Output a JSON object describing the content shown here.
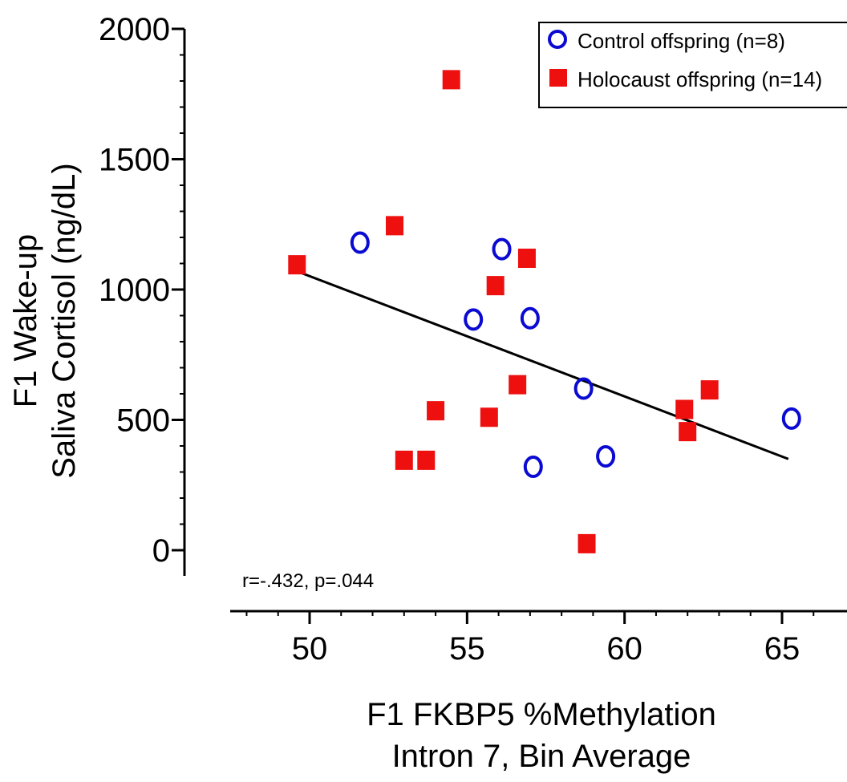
{
  "chart_data": {
    "type": "scatter",
    "x_axis": {
      "label_lines": [
        "F1 FKBP5 %Methylation",
        "Intron 7, Bin Average"
      ],
      "lim": [
        47.5,
        67
      ],
      "ticks": [
        50,
        55,
        60,
        65
      ],
      "tick_labels": [
        "50",
        "55",
        "60",
        "65"
      ]
    },
    "y_axis": {
      "label_lines": [
        "F1 Wake-up",
        "Saliva Cortisol (ng/dL)"
      ],
      "lim": [
        -100,
        2000
      ],
      "ticks": [
        0,
        500,
        1000,
        1500,
        2000
      ],
      "tick_labels": [
        "0",
        "500",
        "1000",
        "1500",
        "2000"
      ]
    },
    "grid": false,
    "legend": {
      "position": "top-right",
      "entries": [
        {
          "name": "Control offspring (n=8)",
          "marker": "open-circle",
          "color": "#0a0ad2"
        },
        {
          "name": "Holocaust offspring (n=14)",
          "marker": "filled-square",
          "color": "#ee0f0f"
        }
      ]
    },
    "series": [
      {
        "name": "Control offspring (n=8)",
        "marker": "open-circle",
        "color": "#0a0ad2",
        "points": [
          {
            "x": 51.6,
            "y": 1180
          },
          {
            "x": 56.1,
            "y": 1155
          },
          {
            "x": 55.2,
            "y": 885
          },
          {
            "x": 57.0,
            "y": 890
          },
          {
            "x": 58.7,
            "y": 620
          },
          {
            "x": 65.3,
            "y": 505
          },
          {
            "x": 59.4,
            "y": 360
          },
          {
            "x": 57.1,
            "y": 320
          }
        ]
      },
      {
        "name": "Holocaust offspring (n=14)",
        "marker": "filled-square",
        "color": "#ee0f0f",
        "points": [
          {
            "x": 54.5,
            "y": 1805
          },
          {
            "x": 52.7,
            "y": 1245
          },
          {
            "x": 49.6,
            "y": 1095
          },
          {
            "x": 56.9,
            "y": 1120
          },
          {
            "x": 55.9,
            "y": 1015
          },
          {
            "x": 56.6,
            "y": 635
          },
          {
            "x": 62.7,
            "y": 615
          },
          {
            "x": 61.9,
            "y": 540
          },
          {
            "x": 62.0,
            "y": 455
          },
          {
            "x": 54.0,
            "y": 535
          },
          {
            "x": 55.7,
            "y": 510
          },
          {
            "x": 53.0,
            "y": 345
          },
          {
            "x": 53.7,
            "y": 345
          },
          {
            "x": 58.8,
            "y": 25
          }
        ]
      }
    ],
    "trend_line": {
      "color": "#000000",
      "x": [
        49.6,
        65.2
      ],
      "y": [
        1070,
        350
      ]
    },
    "annotation": "r=-.432, p=.044"
  }
}
